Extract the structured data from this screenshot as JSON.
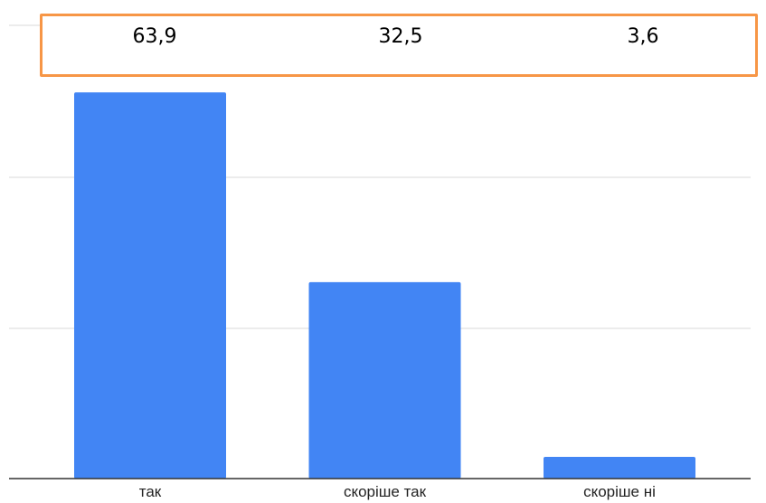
{
  "chart_data": {
    "type": "bar",
    "categories": [
      "так",
      "скоріше так",
      "скоріше ні"
    ],
    "values": [
      63.9,
      32.5,
      3.6
    ],
    "value_labels": [
      "63,9",
      "32,5",
      "3,6"
    ],
    "title": "",
    "xlabel": "",
    "ylabel": "",
    "ylim": [
      0,
      75
    ],
    "grid": true,
    "bar_color": "#4285f4",
    "highlight_box_color": "#f79646"
  }
}
